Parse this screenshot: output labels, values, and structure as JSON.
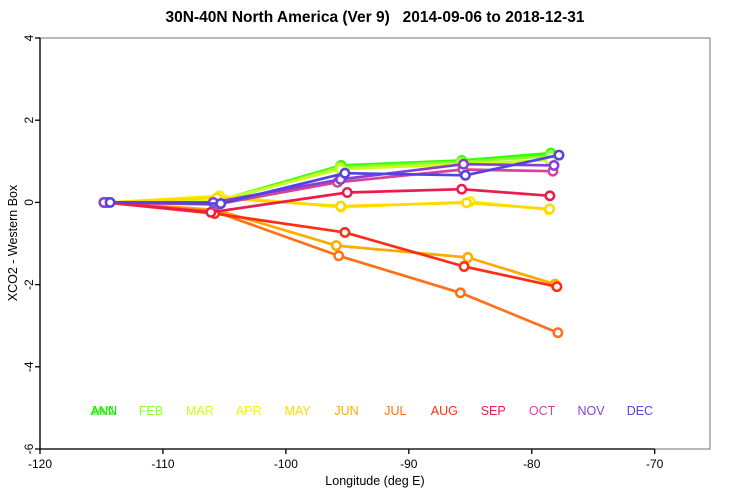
{
  "title": "30N-40N North America (Ver 9)   2014-09-06 to 2018-12-31",
  "chart_data": {
    "type": "line",
    "title": "30N-40N North America (Ver 9)   2014-09-06 to 2018-12-31",
    "xlabel": "Longitude (deg E)",
    "ylabel": "XCO2 - Western Box",
    "xlim": [
      -120,
      -65.5
    ],
    "ylim": [
      -6,
      4
    ],
    "xticks": [
      -120,
      -110,
      -100,
      -90,
      -80,
      -70
    ],
    "yticks": [
      -6,
      -4,
      -2,
      0,
      2,
      4
    ],
    "grid": false,
    "marker": "open-circle",
    "legend_position": "bottom-inside",
    "series": [
      {
        "name": "ANN",
        "color": "#00dd00",
        "x": [
          -114.8,
          -105.9,
          -95.55,
          -85.7,
          -78.45
        ],
        "y": [
          0,
          0.0,
          0.89,
          1.01,
          1.19
        ]
      },
      {
        "name": "JAN",
        "color": "#33ff00",
        "x": [
          -114.8,
          -105.85,
          -95.5,
          -85.7,
          -78.45
        ],
        "y": [
          0,
          0.01,
          0.9,
          1.02,
          1.2
        ]
      },
      {
        "name": "FEB",
        "color": "#8aff2e",
        "x": [
          -114.8,
          -105.9,
          -95.6,
          -85.75,
          -78.5
        ],
        "y": [
          0,
          -0.02,
          0.86,
          0.98,
          1.13
        ]
      },
      {
        "name": "MAR",
        "color": "#ccff1a",
        "x": [
          -114.8,
          -105.8,
          -95.55,
          -85.7,
          -78.5
        ],
        "y": [
          0,
          0.03,
          0.81,
          0.93,
          1.03
        ]
      },
      {
        "name": "APR",
        "color": "#f8f000",
        "x": [
          -114.3,
          -105.4,
          -95.5,
          -85.0,
          -78.6
        ],
        "y": [
          0,
          0.16,
          -0.12,
          0.02,
          -0.18
        ]
      },
      {
        "name": "MAY",
        "color": "#ffd800",
        "x": [
          -114.5,
          -105.6,
          -95.55,
          -85.3,
          -78.55
        ],
        "y": [
          0,
          0.11,
          -0.09,
          -0.01,
          -0.16
        ]
      },
      {
        "name": "JUN",
        "color": "#ffaa00",
        "x": [
          -114.5,
          -105.7,
          -95.9,
          -85.2,
          -78.1
        ],
        "y": [
          0,
          -0.18,
          -1.05,
          -1.34,
          -1.99
        ]
      },
      {
        "name": "JUL",
        "color": "#ff7118",
        "x": [
          -114.6,
          -105.8,
          -95.7,
          -85.8,
          -77.87
        ],
        "y": [
          0,
          -0.22,
          -1.3,
          -2.2,
          -3.17
        ]
      },
      {
        "name": "AUG",
        "color": "#ff2e12",
        "x": [
          -114.7,
          -105.8,
          -95.2,
          -85.5,
          -77.95
        ],
        "y": [
          0,
          -0.27,
          -0.73,
          -1.56,
          -2.05
        ]
      },
      {
        "name": "SEP",
        "color": "#ea1c4e",
        "x": [
          -114.5,
          -106.1,
          -95.0,
          -85.7,
          -78.52
        ],
        "y": [
          0,
          -0.24,
          0.24,
          0.32,
          0.16
        ]
      },
      {
        "name": "OCT",
        "color": "#d4449c",
        "x": [
          -114.6,
          -105.7,
          -95.8,
          -85.6,
          -78.28
        ],
        "y": [
          0,
          -0.05,
          0.49,
          0.8,
          0.76
        ]
      },
      {
        "name": "NOV",
        "color": "#8840d4",
        "x": [
          -114.8,
          -105.9,
          -95.55,
          -85.55,
          -78.19
        ],
        "y": [
          0,
          0.0,
          0.56,
          0.93,
          0.9
        ]
      },
      {
        "name": "DEC",
        "color": "#5244e0",
        "x": [
          -114.3,
          -105.3,
          -95.2,
          -85.4,
          -77.78
        ],
        "y": [
          0,
          -0.03,
          0.71,
          0.66,
          1.15
        ]
      }
    ]
  },
  "legend": {
    "items": [
      {
        "label": "ANN",
        "color": "#00dd00"
      },
      {
        "label": "JAN",
        "color": "#33ff00"
      },
      {
        "label": "FEB",
        "color": "#8aff2e"
      },
      {
        "label": "MAR",
        "color": "#ccff1a"
      },
      {
        "label": "APR",
        "color": "#f8f000"
      },
      {
        "label": "MAY",
        "color": "#ffd800"
      },
      {
        "label": "JUN",
        "color": "#ffaa00"
      },
      {
        "label": "JUL",
        "color": "#ff7118"
      },
      {
        "label": "AUG",
        "color": "#ff2e12"
      },
      {
        "label": "SEP",
        "color": "#ea1c4e"
      },
      {
        "label": "OCT",
        "color": "#d4449c"
      },
      {
        "label": "NOV",
        "color": "#8840d4"
      },
      {
        "label": "DEC",
        "color": "#5244e0"
      }
    ]
  },
  "colors": {
    "axis": "#000000",
    "box": "#8c8c8c",
    "background": "#ffffff"
  }
}
